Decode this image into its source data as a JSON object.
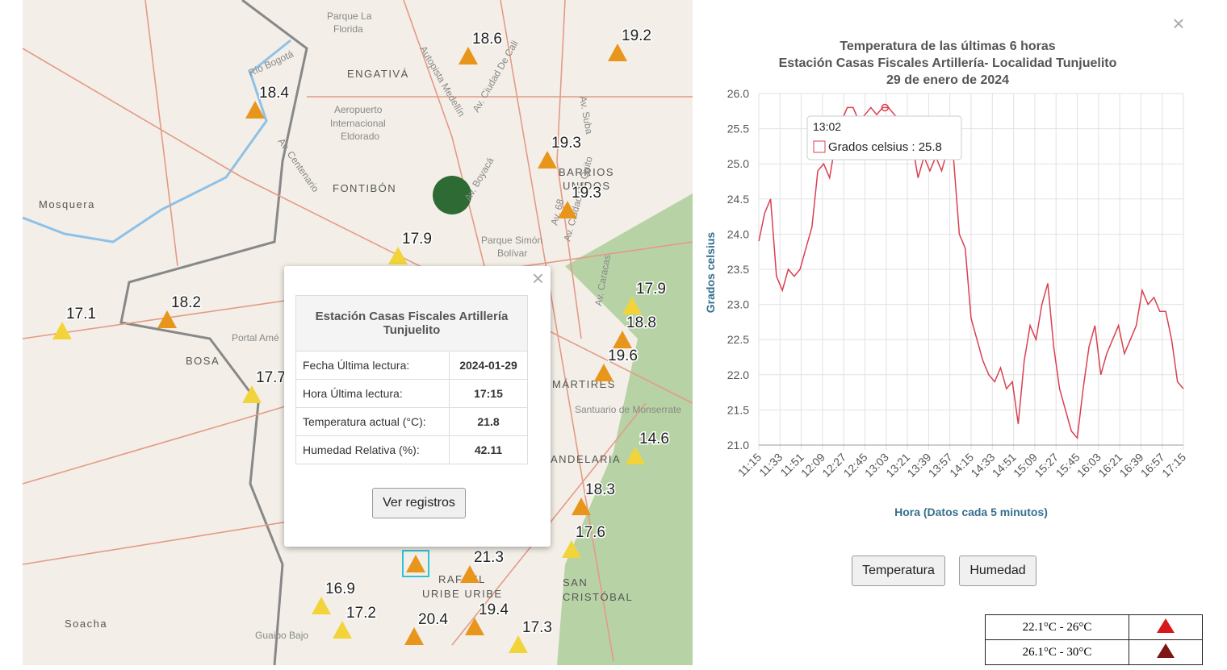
{
  "map": {
    "places": [
      "Mosquera",
      "ENGATIVÁ",
      "FONTIBÓN",
      "BOSA",
      "Soacha",
      "BARRIOS",
      "UNIDOS",
      "Parque La",
      "Florida",
      "Aeropuerto",
      "Internacional",
      "Eldorado",
      "Portal Amé",
      "SAN",
      "CRISTÓBAL",
      "RAFAEL",
      "URIBE URIBE",
      "Santuario de Monserrate",
      "Parque Simón",
      "Bolívar",
      "MÁRTIRES",
      "ANDELARIA",
      "Guaibo Bajo",
      "Río Bogotá",
      "Av. Boyacá",
      "Av. Ciudad De Cali",
      "Autopista Medellín",
      "Av. Suba",
      "Av. 68",
      "Av. Centenario",
      "Av. Caracas",
      "Av. Ciudad De Quito"
    ],
    "stations": [
      {
        "value": 18.6,
        "color": "#e8951c"
      },
      {
        "value": 19.2,
        "color": "#e8951c"
      },
      {
        "value": 18.4,
        "color": "#e8951c"
      },
      {
        "value": 19.3,
        "color": "#e8951c"
      },
      {
        "value": 19.3,
        "color": "#e8951c"
      },
      {
        "value": 17.9,
        "color": "#f2d43a"
      },
      {
        "value": 18.2,
        "color": "#e8951c"
      },
      {
        "value": 17.1,
        "color": "#f2d43a"
      },
      {
        "value": 17.7,
        "color": "#f2d43a"
      },
      {
        "value": 17.9,
        "color": "#f2d43a"
      },
      {
        "value": 18.8,
        "color": "#e8951c"
      },
      {
        "value": 19.6,
        "color": "#e8951c"
      },
      {
        "value": 14.6,
        "color": "#f2d43a"
      },
      {
        "value": 18.3,
        "color": "#e8951c"
      },
      {
        "value": 17.6,
        "color": "#f2d43a"
      },
      {
        "value": 21.3,
        "color": "#e8951c"
      },
      {
        "value": 16.9,
        "color": "#f2d43a"
      },
      {
        "value": 17.2,
        "color": "#f2d43a"
      },
      {
        "value": 20.4,
        "color": "#e8951c"
      },
      {
        "value": 19.4,
        "color": "#e8951c"
      },
      {
        "value": 17.3,
        "color": "#f2d43a"
      }
    ]
  },
  "popup": {
    "title": "Estación Casas Fiscales Artillería Tunjuelito",
    "rows": [
      [
        "Fecha Última lectura:",
        "2024-01-29"
      ],
      [
        "Hora Última lectura:",
        "17:15"
      ],
      [
        "Temperatura actual (°C):",
        "21.8"
      ],
      [
        "Humedad Relativa (%):",
        "42.11"
      ]
    ],
    "button": "Ver registros"
  },
  "chart_data": {
    "type": "line",
    "title": [
      "Temperatura de las últimas 6 horas",
      "Estación Casas Fiscales Artillería- Localidad Tunjuelito",
      "29 de enero de 2024"
    ],
    "y_label": "Grados celsius",
    "x_label": "Hora (Datos cada 5 minutos)",
    "x": [
      "11:15",
      "11:20",
      "11:25",
      "11:30",
      "11:35",
      "11:40",
      "11:45",
      "11:50",
      "11:55",
      "12:00",
      "12:05",
      "12:10",
      "12:15",
      "12:20",
      "12:25",
      "12:30",
      "12:35",
      "12:40",
      "12:45",
      "12:50",
      "12:55",
      "13:00",
      "13:05",
      "13:10",
      "13:15",
      "13:20",
      "13:25",
      "13:30",
      "13:35",
      "13:40",
      "13:45",
      "13:50",
      "13:55",
      "14:00",
      "14:05",
      "14:10",
      "14:15",
      "14:20",
      "14:25",
      "14:30",
      "14:35",
      "14:40",
      "14:45",
      "14:50",
      "14:55",
      "15:00",
      "15:05",
      "15:10",
      "15:15",
      "15:20",
      "15:25",
      "15:30",
      "15:35",
      "15:40",
      "15:45",
      "15:50",
      "15:55",
      "16:00",
      "16:05",
      "16:10",
      "16:15",
      "16:20",
      "16:25",
      "16:30",
      "16:35",
      "16:40",
      "16:45",
      "16:50",
      "16:55",
      "17:00",
      "17:05",
      "17:10",
      "17:15"
    ],
    "series": [
      {
        "name": "Grados celsius",
        "color": "#d9404f",
        "values": [
          23.9,
          24.3,
          24.5,
          23.4,
          23.2,
          23.5,
          23.4,
          23.5,
          23.8,
          24.1,
          24.9,
          25.0,
          24.8,
          25.3,
          25.6,
          25.8,
          25.8,
          25.6,
          25.7,
          25.8,
          25.7,
          25.8,
          25.8,
          25.7,
          25.6,
          25.5,
          25.3,
          24.8,
          25.1,
          24.9,
          25.1,
          24.9,
          25.2,
          25.1,
          24.0,
          23.8,
          22.8,
          22.5,
          22.2,
          22.0,
          21.9,
          22.1,
          21.8,
          21.9,
          21.3,
          22.2,
          22.7,
          22.5,
          23.0,
          23.3,
          22.4,
          21.8,
          21.5,
          21.2,
          21.1,
          21.8,
          22.4,
          22.7,
          22.0,
          22.3,
          22.5,
          22.7,
          22.3,
          22.5,
          22.7,
          23.2,
          23.0,
          23.1,
          22.9,
          22.9,
          22.5,
          21.9,
          21.8
        ]
      }
    ],
    "xlim": [
      "11:15",
      "17:15"
    ],
    "xticks": [
      "11:15",
      "11:33",
      "11:51",
      "12:09",
      "12:27",
      "12:45",
      "13:03",
      "13:21",
      "13:39",
      "13:57",
      "14:15",
      "14:33",
      "14:51",
      "15:09",
      "15:27",
      "15:45",
      "16:03",
      "16:21",
      "16:39",
      "16:57",
      "17:15"
    ],
    "ylim": [
      21,
      26
    ],
    "yticks": [
      {
        "value": 21,
        "label": "21.0"
      },
      {
        "value": 21.5,
        "label": "21.5"
      },
      {
        "value": 22,
        "label": "22.0"
      },
      {
        "value": 22.5,
        "label": "22.5"
      },
      {
        "value": 23,
        "label": "23.0"
      },
      {
        "value": 23.5,
        "label": "23.5"
      },
      {
        "value": 24,
        "label": "24.0"
      },
      {
        "value": 24.5,
        "label": "24.5"
      },
      {
        "value": 25,
        "label": "25.0"
      },
      {
        "value": 25.5,
        "label": "25.5"
      },
      {
        "value": 26,
        "label": "26.0"
      }
    ],
    "grid": true,
    "tooltip": {
      "time": "13:02",
      "text": "Grados celsius : 25.8",
      "value": 25.8
    },
    "buttons": [
      "Temperatura",
      "Humedad"
    ]
  },
  "legend": [
    {
      "label": "22.1°C - 26°C",
      "color": "#d7191c"
    },
    {
      "label": "26.1°C - 30°C",
      "color": "#7f1414"
    }
  ]
}
